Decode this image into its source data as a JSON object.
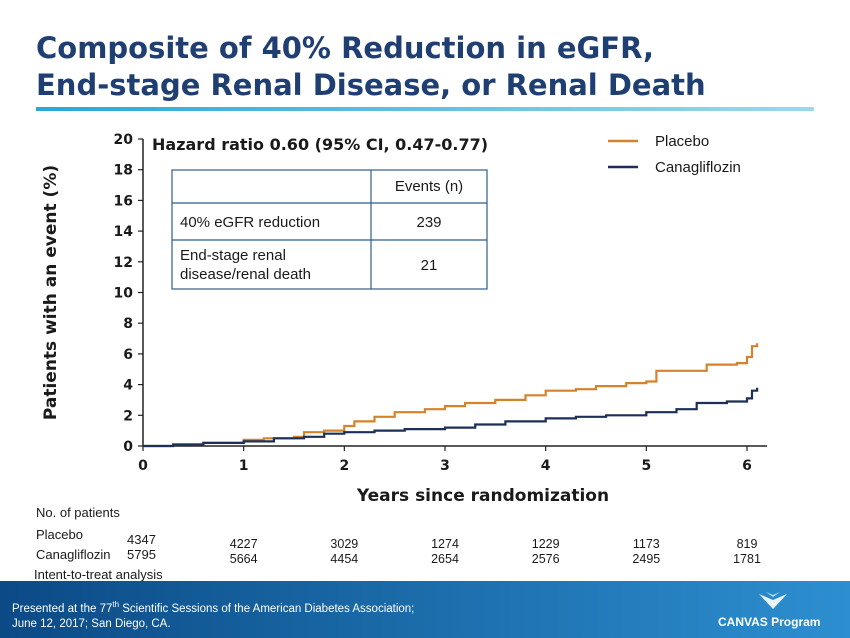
{
  "slide": {
    "title_line1": "Composite of 40% Reduction in eGFR,",
    "title_line2": "End-stage Renal Disease, or Renal Death"
  },
  "chart_data": {
    "type": "line",
    "title": "",
    "xlabel": "Years since randomization",
    "ylabel": "Patients with an event (%)",
    "xlim": [
      0,
      6.15
    ],
    "ylim": [
      0,
      20
    ],
    "xticks": [
      0,
      1,
      2,
      3,
      4,
      5,
      6
    ],
    "yticks": [
      0,
      2,
      4,
      6,
      8,
      10,
      12,
      14,
      16,
      18,
      20
    ],
    "grid": false,
    "legend_position": "top-right",
    "annotation": "Hazard ratio 0.60 (95% CI, 0.47-0.77)",
    "series": [
      {
        "name": "Placebo",
        "color": "#d4832b",
        "x": [
          0,
          0.3,
          0.6,
          1.0,
          1.2,
          1.5,
          1.6,
          1.8,
          2.0,
          2.1,
          2.3,
          2.5,
          2.8,
          3.0,
          3.2,
          3.5,
          3.8,
          4.0,
          4.3,
          4.5,
          4.8,
          5.0,
          5.1,
          5.4,
          5.6,
          5.9,
          6.0,
          6.05,
          6.1
        ],
        "y": [
          0,
          0.1,
          0.2,
          0.4,
          0.5,
          0.6,
          0.9,
          1.0,
          1.3,
          1.6,
          1.9,
          2.2,
          2.4,
          2.6,
          2.8,
          3.0,
          3.3,
          3.6,
          3.7,
          3.9,
          4.1,
          4.2,
          4.9,
          4.9,
          5.3,
          5.4,
          5.8,
          6.5,
          6.7
        ]
      },
      {
        "name": "Canagliflozin",
        "color": "#1b2f57",
        "x": [
          0,
          0.3,
          0.6,
          1.0,
          1.3,
          1.6,
          1.8,
          2.0,
          2.3,
          2.6,
          3.0,
          3.3,
          3.6,
          4.0,
          4.3,
          4.6,
          5.0,
          5.3,
          5.5,
          5.8,
          6.0,
          6.05,
          6.1
        ],
        "y": [
          0,
          0.1,
          0.2,
          0.3,
          0.5,
          0.6,
          0.8,
          0.9,
          1.0,
          1.1,
          1.2,
          1.4,
          1.6,
          1.8,
          1.9,
          2.0,
          2.2,
          2.4,
          2.8,
          2.9,
          3.1,
          3.6,
          3.8
        ]
      }
    ],
    "events_table": {
      "header": "Events  (n)",
      "rows": [
        {
          "label": "40% eGFR reduction",
          "value": "239"
        },
        {
          "label": "End-stage renal disease/renal death",
          "value": "21"
        }
      ]
    }
  },
  "risk_table": {
    "heading": "No. of patients",
    "rows": [
      {
        "label": "Placebo",
        "start": "4347",
        "values": [
          "4227",
          "3029",
          "1274",
          "1229",
          "1173",
          "819"
        ]
      },
      {
        "label": "Canagliflozin",
        "start": "5795",
        "values": [
          "5664",
          "4454",
          "2654",
          "2576",
          "2495",
          "1781"
        ]
      }
    ],
    "note": "Intent-to-treat analysis"
  },
  "footer": {
    "line1_pre": "Presented at the 77",
    "line1_sup": "th",
    "line1_post": " Scientific Sessions of the American Diabetes Association;",
    "line2": "June 12, 2017; San Diego, CA.",
    "logo": "CANVAS Program",
    "colors": {
      "start": "#0b4a86",
      "end": "#2d8fd0"
    }
  }
}
